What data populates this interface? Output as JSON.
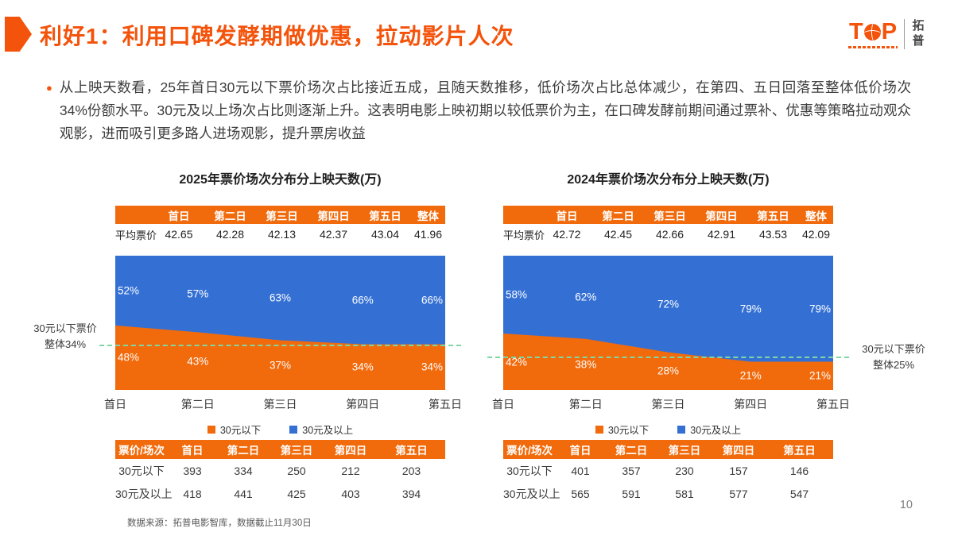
{
  "slide": {
    "title": "利好1：利用口碑发酵期做优惠，拉动影片人次",
    "bullet_glyph": "●",
    "bullet_text": "从上映天数看，25年首日30元以下票价场次占比接近五成，且随天数推移，低价场次占比总体减少，在第四、五日回落至整体低价场次34%份额水平。30元及以上场次占比则逐渐上升。这表明电影上映初期以较低票价为主，在口碑发酵前期间通过票补、优惠等策略拉动观众观影，进而吸引更多路人进场观影，提升票房收益",
    "source_note": "数据来源：拓普电影智库，数据截止11月30日",
    "page_number": "10"
  },
  "logo": {
    "t": "T",
    "p": "P",
    "cn": "拓普"
  },
  "colors": {
    "accent_orange": "#F4530B",
    "series_orange": "#F16A0B",
    "series_blue": "#3470D4",
    "dashed_reference_green": "#7FD8A4"
  },
  "chart_data": [
    {
      "type": "area",
      "title": "2025年票价场次分布分上映天数(万)",
      "categories": [
        "首日",
        "第二日",
        "第三日",
        "第四日",
        "第五日"
      ],
      "series": [
        {
          "name": "30元以下",
          "color": "#F16A0B",
          "values_pct": [
            48,
            43,
            37,
            34,
            34
          ],
          "sessions": [
            393,
            334,
            250,
            212,
            203
          ]
        },
        {
          "name": "30元及以上",
          "color": "#3470D4",
          "values_pct": [
            52,
            57,
            63,
            66,
            66
          ],
          "sessions": [
            418,
            441,
            425,
            403,
            394
          ]
        }
      ],
      "ylim": [
        0,
        100
      ],
      "legend_position": "bottom",
      "avg_price": {
        "label": "平均票价",
        "columns": [
          "首日",
          "第二日",
          "第三日",
          "第四日",
          "第五日",
          "整体"
        ],
        "values": [
          "42.65",
          "42.28",
          "42.13",
          "42.37",
          "43.04",
          "41.96"
        ]
      },
      "annotation": {
        "line1": "30元以下票价",
        "line2": "整体34%",
        "ref_pct": 34
      },
      "table": {
        "header": [
          "票价/场次",
          "首日",
          "第二日",
          "第三日",
          "第四日",
          "第五日"
        ],
        "rows": [
          {
            "label": "30元以下",
            "values": [
              "393",
              "334",
              "250",
              "212",
              "203"
            ]
          },
          {
            "label": "30元及以上",
            "values": [
              "418",
              "441",
              "425",
              "403",
              "394"
            ]
          }
        ]
      }
    },
    {
      "type": "area",
      "title": "2024年票价场次分布分上映天数(万)",
      "categories": [
        "首日",
        "第二日",
        "第三日",
        "第四日",
        "第五日"
      ],
      "series": [
        {
          "name": "30元以下",
          "color": "#F16A0B",
          "values_pct": [
            42,
            38,
            28,
            21,
            21
          ],
          "sessions": [
            401,
            357,
            230,
            157,
            146
          ]
        },
        {
          "name": "30元及以上",
          "color": "#3470D4",
          "values_pct": [
            58,
            62,
            72,
            79,
            79
          ],
          "sessions": [
            565,
            591,
            581,
            577,
            547
          ]
        }
      ],
      "ylim": [
        0,
        100
      ],
      "legend_position": "bottom",
      "avg_price": {
        "label": "平均票价",
        "columns": [
          "首日",
          "第二日",
          "第三日",
          "第四日",
          "第五日",
          "整体"
        ],
        "values": [
          "42.72",
          "42.45",
          "42.66",
          "42.91",
          "43.53",
          "42.09"
        ]
      },
      "annotation": {
        "line1": "30元以下票价",
        "line2": "整体25%",
        "ref_pct": 25
      },
      "table": {
        "header": [
          "票价/场次",
          "首日",
          "第二日",
          "第三日",
          "第四日",
          "第五日"
        ],
        "rows": [
          {
            "label": "30元以下",
            "values": [
              "401",
              "357",
              "230",
              "157",
              "146"
            ]
          },
          {
            "label": "30元及以上",
            "values": [
              "565",
              "591",
              "581",
              "577",
              "547"
            ]
          }
        ]
      }
    }
  ]
}
